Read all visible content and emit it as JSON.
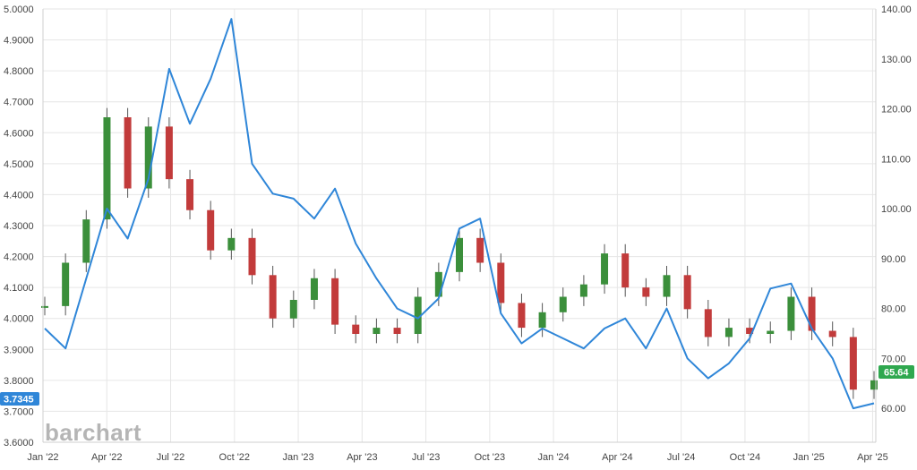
{
  "watermark": "barchart",
  "colors": {
    "line": "#2f86d8",
    "candle_up": "#3b8f3b",
    "candle_down": "#c23b3b",
    "badge_left": "#2f86d8",
    "badge_right": "#2fa84f",
    "grid": "#e6e6e6"
  },
  "badges": {
    "left_value": "3.7345",
    "right_value": "65.64"
  },
  "chart_data": {
    "type": "line",
    "grid": true,
    "title": "",
    "xlabel": "",
    "x_ticks": [
      "Jan '22",
      "Apr '22",
      "Jul '22",
      "Oct '22",
      "Jan '23",
      "Apr '23",
      "Jul '23",
      "Oct '23",
      "Jan '24",
      "Apr '24",
      "Jul '24",
      "Oct '24",
      "Jan '25",
      "Apr '25"
    ],
    "y_left": {
      "range": [
        3.6,
        5.0
      ],
      "ticks": [
        "3.6000",
        "3.7000",
        "3.8000",
        "3.9000",
        "4.0000",
        "4.1000",
        "4.2000",
        "4.3000",
        "4.4000",
        "4.5000",
        "4.6000",
        "4.7000",
        "4.8000",
        "4.9000",
        "5.0000"
      ]
    },
    "y_right": {
      "range": [
        53.2,
        140.0
      ],
      "ticks": [
        "60.00",
        "70.00",
        "80.00",
        "90.00",
        "100.00",
        "110.00",
        "120.00",
        "130.00",
        "140.00"
      ]
    },
    "series": [
      {
        "kind": "line",
        "axis": "right",
        "points": [
          [
            "Jan '22",
            76
          ],
          [
            "Feb '22",
            72
          ],
          [
            "Mar '22",
            86
          ],
          [
            "Apr '22",
            100
          ],
          [
            "May '22",
            94
          ],
          [
            "Jun '22",
            106
          ],
          [
            "Jul '22",
            128
          ],
          [
            "Aug '22",
            117
          ],
          [
            "Sep '22",
            126
          ],
          [
            "Oct '22",
            138
          ],
          [
            "Nov '22",
            109
          ],
          [
            "Dec '22",
            103
          ],
          [
            "Jan '23",
            102
          ],
          [
            "Feb '23",
            98
          ],
          [
            "Mar '23",
            104
          ],
          [
            "Apr '23",
            93
          ],
          [
            "May '23",
            86
          ],
          [
            "Jun '23",
            80
          ],
          [
            "Jul '23",
            78
          ],
          [
            "Aug '23",
            82
          ],
          [
            "Sep '23",
            96
          ],
          [
            "Oct '23",
            98
          ],
          [
            "Nov '23",
            79
          ],
          [
            "Dec '23",
            73
          ],
          [
            "Jan '24",
            76
          ],
          [
            "Feb '24",
            74
          ],
          [
            "Mar '24",
            72
          ],
          [
            "Apr '24",
            76
          ],
          [
            "May '24",
            78
          ],
          [
            "Jun '24",
            72
          ],
          [
            "Jul '24",
            80
          ],
          [
            "Aug '24",
            70
          ],
          [
            "Sep '24",
            66
          ],
          [
            "Oct '24",
            69
          ],
          [
            "Nov '24",
            74
          ],
          [
            "Dec '24",
            84
          ],
          [
            "Jan '25",
            85
          ],
          [
            "Feb '25",
            76
          ],
          [
            "Mar '25",
            70
          ],
          [
            "Apr '25",
            60
          ],
          [
            "May '25",
            61
          ]
        ]
      },
      {
        "kind": "candlestick",
        "axis": "left",
        "points": [
          [
            "Jan '22",
            4.04
          ],
          [
            "Feb '22",
            4.18
          ],
          [
            "Mar '22",
            4.32
          ],
          [
            "Apr '22",
            4.65
          ],
          [
            "May '22",
            4.42
          ],
          [
            "Jun '22",
            4.62
          ],
          [
            "Jul '22",
            4.45
          ],
          [
            "Aug '22",
            4.35
          ],
          [
            "Sep '22",
            4.22
          ],
          [
            "Oct '22",
            4.26
          ],
          [
            "Nov '22",
            4.14
          ],
          [
            "Dec '22",
            4.0
          ],
          [
            "Jan '23",
            4.06
          ],
          [
            "Feb '23",
            4.13
          ],
          [
            "Mar '23",
            3.98
          ],
          [
            "Apr '23",
            3.95
          ],
          [
            "May '23",
            3.97
          ],
          [
            "Jun '23",
            3.95
          ],
          [
            "Jul '23",
            4.07
          ],
          [
            "Aug '23",
            4.15
          ],
          [
            "Sep '23",
            4.26
          ],
          [
            "Oct '23",
            4.18
          ],
          [
            "Nov '23",
            4.05
          ],
          [
            "Dec '23",
            3.97
          ],
          [
            "Jan '24",
            4.02
          ],
          [
            "Feb '24",
            4.07
          ],
          [
            "Mar '24",
            4.11
          ],
          [
            "Apr '24",
            4.21
          ],
          [
            "May '24",
            4.1
          ],
          [
            "Jun '24",
            4.07
          ],
          [
            "Jul '24",
            4.14
          ],
          [
            "Aug '24",
            4.03
          ],
          [
            "Sep '24",
            3.94
          ],
          [
            "Oct '24",
            3.97
          ],
          [
            "Nov '24",
            3.95
          ],
          [
            "Dec '24",
            3.96
          ],
          [
            "Jan '25",
            4.07
          ],
          [
            "Feb '25",
            3.96
          ],
          [
            "Mar '25",
            3.94
          ],
          [
            "Apr '25",
            3.77
          ],
          [
            "May '25",
            3.8
          ]
        ]
      }
    ]
  }
}
